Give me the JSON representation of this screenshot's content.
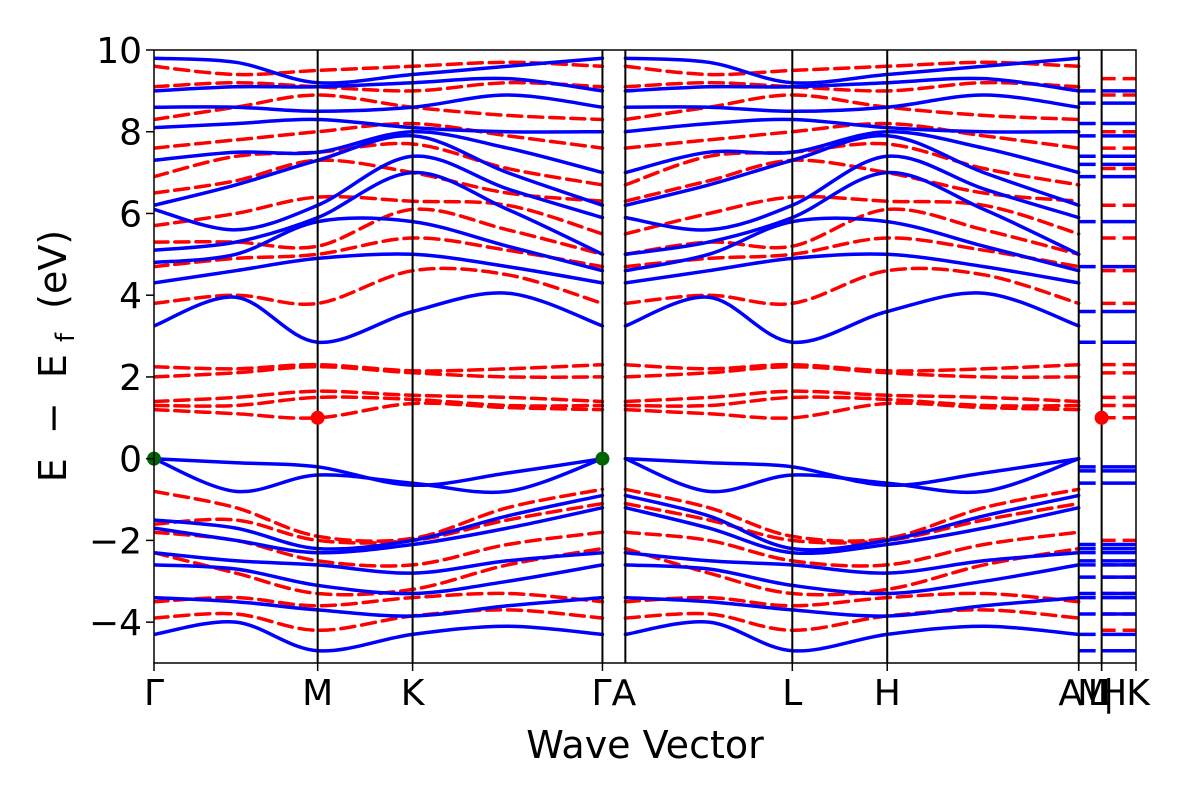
{
  "chart_data": {
    "type": "line",
    "title": "",
    "xlabel": "Wave Vector",
    "ylabel_parts": {
      "e": "E",
      "minus": "−",
      "ef": "E",
      "sub": "f",
      "unit": "(eV)"
    },
    "ylim": [
      -5,
      10
    ],
    "yticks": [
      -4,
      -2,
      0,
      2,
      4,
      6,
      8,
      10
    ],
    "ytick_labels": [
      "−4",
      "−2",
      "0",
      "2",
      "4",
      "6",
      "8",
      "10"
    ],
    "x_range": [
      0,
      6.0
    ],
    "kpoints": [
      {
        "label": "Γ",
        "x": 0.0
      },
      {
        "label": "M",
        "x": 1.0
      },
      {
        "label": "K",
        "x": 1.58
      },
      {
        "label": "ΓA",
        "x": 2.74
      },
      {
        "label": "L",
        "x": 3.9
      },
      {
        "label": "H",
        "x": 4.48
      },
      {
        "label": "A",
        "x": 5.65
      },
      {
        "label": "M",
        "x": 5.65
      },
      {
        "label": "|",
        "x": 5.65
      },
      {
        "label": "L",
        "x": 5.79
      },
      {
        "label": "H",
        "x": 5.79
      },
      {
        "label": "K",
        "x": 6.0
      }
    ],
    "kpoint_lines_x": [
      1.0,
      1.58,
      2.74,
      2.88,
      3.9,
      4.48,
      5.65,
      5.79
    ],
    "series_colors": {
      "spin_up": "#0000ff",
      "spin_down": "#ff0000"
    },
    "markers": [
      {
        "x": 0.0,
        "y": 0.0,
        "color": "#006400"
      },
      {
        "x": 2.74,
        "y": 0.0,
        "color": "#006400"
      },
      {
        "x": 1.0,
        "y": 1.0,
        "color": "#ff0000"
      },
      {
        "x": 5.79,
        "y": 1.0,
        "color": "#ff0000"
      }
    ],
    "band_x": [
      0,
      0.5,
      1.0,
      1.58,
      2.16,
      2.74,
      2.88,
      3.39,
      3.9,
      4.48,
      5.07,
      5.65
    ],
    "bands_up": [
      [
        -4.3,
        -4.0,
        -4.7,
        -4.3,
        -4.1,
        -4.3,
        -4.3,
        -4.0,
        -4.7,
        -4.3,
        -4.1,
        -4.3
      ],
      [
        -3.4,
        -3.5,
        -3.7,
        -3.85,
        -3.6,
        -3.4,
        -3.4,
        -3.5,
        -3.7,
        -3.85,
        -3.6,
        -3.4
      ],
      [
        -2.6,
        -2.7,
        -3.1,
        -3.3,
        -3.0,
        -2.6,
        -2.6,
        -2.7,
        -3.1,
        -3.3,
        -3.0,
        -2.6
      ],
      [
        -2.3,
        -2.5,
        -2.6,
        -2.8,
        -2.5,
        -2.3,
        -2.3,
        -2.5,
        -2.6,
        -2.8,
        -2.5,
        -2.3
      ],
      [
        -1.7,
        -2.0,
        -2.3,
        -2.1,
        -1.7,
        -1.2,
        -1.2,
        -1.7,
        -2.3,
        -2.1,
        -1.7,
        -1.2
      ],
      [
        -1.5,
        -1.7,
        -2.2,
        -2.0,
        -1.4,
        -0.9,
        -0.9,
        -1.4,
        -2.2,
        -2.0,
        -1.4,
        -0.9
      ],
      [
        0.0,
        -0.8,
        -0.4,
        -0.6,
        -0.8,
        0.0,
        0.0,
        -0.8,
        -0.4,
        -0.6,
        -0.8,
        0.0
      ],
      [
        0.0,
        -0.1,
        -0.2,
        -0.65,
        -0.35,
        0.0,
        0.0,
        -0.1,
        -0.2,
        -0.65,
        -0.35,
        0.0
      ],
      [
        3.25,
        3.95,
        2.85,
        3.6,
        4.05,
        3.25,
        3.25,
        3.95,
        2.85,
        3.6,
        4.05,
        3.25
      ],
      [
        4.3,
        4.6,
        4.9,
        5.0,
        4.7,
        4.3,
        4.3,
        4.6,
        4.9,
        5.0,
        4.7,
        4.3
      ],
      [
        4.8,
        5.0,
        5.8,
        5.8,
        5.2,
        4.6,
        4.6,
        5.0,
        5.8,
        5.8,
        5.2,
        4.6
      ],
      [
        5.1,
        5.3,
        5.9,
        7.0,
        6.1,
        5.0,
        5.0,
        5.3,
        5.9,
        7.0,
        6.1,
        5.0
      ],
      [
        6.1,
        5.6,
        6.2,
        7.4,
        6.6,
        5.9,
        5.9,
        5.6,
        6.2,
        7.4,
        6.6,
        5.9
      ],
      [
        6.2,
        6.7,
        7.3,
        7.9,
        7.0,
        6.2,
        6.2,
        6.7,
        7.3,
        7.9,
        7.0,
        6.2
      ],
      [
        7.3,
        7.5,
        7.5,
        8.0,
        7.6,
        7.0,
        7.0,
        7.5,
        7.5,
        8.0,
        7.6,
        7.0
      ],
      [
        8.1,
        8.2,
        8.3,
        8.1,
        8.0,
        8.0,
        8.0,
        8.2,
        8.3,
        8.1,
        8.0,
        8.0
      ],
      [
        8.6,
        8.6,
        8.5,
        8.6,
        8.9,
        8.6,
        8.6,
        8.6,
        8.5,
        8.6,
        8.9,
        8.6
      ],
      [
        9.0,
        9.1,
        9.1,
        9.2,
        9.3,
        9.0,
        9.0,
        9.1,
        9.1,
        9.2,
        9.3,
        9.0
      ],
      [
        9.8,
        9.7,
        9.2,
        9.4,
        9.6,
        9.8,
        9.8,
        9.7,
        9.2,
        9.4,
        9.6,
        9.8
      ]
    ],
    "bands_down": [
      [
        -3.9,
        -3.8,
        -4.2,
        -3.85,
        -3.7,
        -3.9,
        -3.9,
        -3.8,
        -4.2,
        -3.85,
        -3.7,
        -3.9
      ],
      [
        -3.5,
        -3.4,
        -3.6,
        -3.4,
        -3.3,
        -3.5,
        -3.5,
        -3.4,
        -3.6,
        -3.4,
        -3.3,
        -3.5
      ],
      [
        -2.3,
        -2.8,
        -3.3,
        -3.2,
        -2.6,
        -2.2,
        -2.2,
        -2.8,
        -3.3,
        -3.2,
        -2.6,
        -2.2
      ],
      [
        -1.8,
        -2.0,
        -2.5,
        -2.6,
        -2.1,
        -1.8,
        -1.8,
        -2.0,
        -2.5,
        -2.6,
        -2.1,
        -1.8
      ],
      [
        -1.6,
        -1.5,
        -2.0,
        -2.0,
        -1.5,
        -1.1,
        -1.1,
        -1.5,
        -2.0,
        -2.0,
        -1.5,
        -1.1
      ],
      [
        -0.8,
        -1.2,
        -1.9,
        -1.95,
        -1.2,
        -0.75,
        -0.75,
        -1.2,
        -1.9,
        -1.95,
        -1.2,
        -0.75
      ],
      [
        1.2,
        1.1,
        1.0,
        1.35,
        1.25,
        1.2,
        1.2,
        1.1,
        1.0,
        1.35,
        1.25,
        1.2
      ],
      [
        1.3,
        1.3,
        1.5,
        1.45,
        1.3,
        1.3,
        1.3,
        1.3,
        1.5,
        1.45,
        1.3,
        1.3
      ],
      [
        1.4,
        1.5,
        1.65,
        1.55,
        1.5,
        1.4,
        1.4,
        1.5,
        1.65,
        1.55,
        1.5,
        1.4
      ],
      [
        2.0,
        2.1,
        2.25,
        2.1,
        2.0,
        2.0,
        2.0,
        2.1,
        2.25,
        2.1,
        2.0,
        2.0
      ],
      [
        2.25,
        2.2,
        2.3,
        2.15,
        2.2,
        2.3,
        2.3,
        2.2,
        2.3,
        2.15,
        2.2,
        2.3
      ],
      [
        3.8,
        4.0,
        3.8,
        4.6,
        4.5,
        3.8,
        3.8,
        4.0,
        3.8,
        4.6,
        4.5,
        3.8
      ],
      [
        4.7,
        4.9,
        5.0,
        5.4,
        5.1,
        4.7,
        4.7,
        4.9,
        5.0,
        5.4,
        5.1,
        4.7
      ],
      [
        5.3,
        5.3,
        5.2,
        6.1,
        5.6,
        5.0,
        5.0,
        5.3,
        5.2,
        6.1,
        5.6,
        5.0
      ],
      [
        5.7,
        6.0,
        6.4,
        6.3,
        6.2,
        5.5,
        5.5,
        6.0,
        6.4,
        6.3,
        6.2,
        5.5
      ],
      [
        6.5,
        6.8,
        7.3,
        7.0,
        6.5,
        6.3,
        6.3,
        6.8,
        7.3,
        7.0,
        6.5,
        6.3
      ],
      [
        6.9,
        7.4,
        7.5,
        7.7,
        7.1,
        6.7,
        6.7,
        7.4,
        7.5,
        7.7,
        7.1,
        6.7
      ],
      [
        7.6,
        7.8,
        8.0,
        8.2,
        7.9,
        7.6,
        7.6,
        7.8,
        8.0,
        8.2,
        7.9,
        7.6
      ],
      [
        8.3,
        8.6,
        8.9,
        8.6,
        8.4,
        8.3,
        8.3,
        8.6,
        8.9,
        8.6,
        8.4,
        8.3
      ],
      [
        9.1,
        9.2,
        9.1,
        9.0,
        9.2,
        9.1,
        9.1,
        9.2,
        9.1,
        9.0,
        9.2,
        9.1
      ],
      [
        9.6,
        9.4,
        9.5,
        9.6,
        9.7,
        9.6,
        9.6,
        9.4,
        9.5,
        9.6,
        9.7,
        9.6
      ]
    ],
    "k_segment_up": [
      -4.7,
      -4.3,
      -3.8,
      -3.4,
      -3.3,
      -2.9,
      -2.6,
      -2.5,
      -2.3,
      -2.2,
      -2.1,
      -0.6,
      -0.3,
      -0.2,
      2.85,
      3.6,
      4.7,
      5.8,
      6.9,
      7.2,
      7.4,
      7.9,
      8.2,
      8.7,
      9.0
    ],
    "k_segment_down": [
      -4.2,
      -3.8,
      -3.3,
      -2.9,
      -2.6,
      -2.0,
      1.0,
      1.3,
      1.5,
      2.1,
      2.3,
      3.8,
      4.6,
      5.4,
      6.2,
      7.1,
      7.6,
      8.0,
      8.9,
      9.3
    ]
  }
}
